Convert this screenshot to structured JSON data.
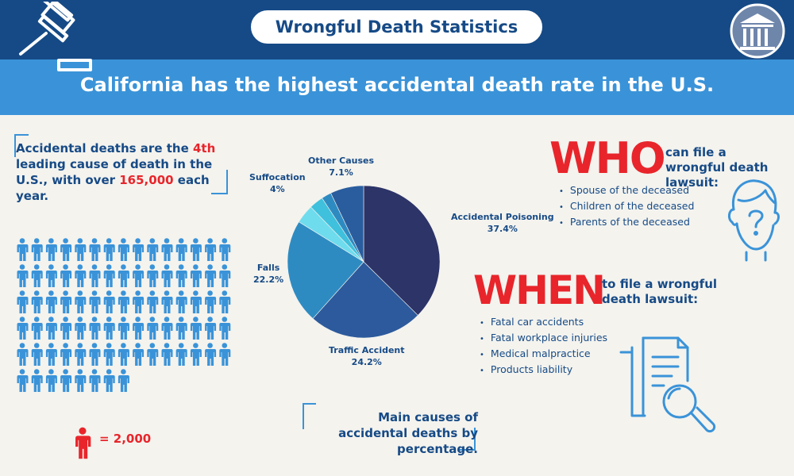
{
  "header": {
    "title": "Wrongful Death Statistics",
    "headline": "California has the highest accidental death rate in the U.S.",
    "gavel_icon": "gavel-icon",
    "logo_icon": "courthouse-logo-icon"
  },
  "fact": {
    "part1": "Accidental deaths are the ",
    "rank": "4th",
    "part2": " leading cause of death in the U.S., with over ",
    "count": "165,000",
    "part3": " each year."
  },
  "pictogram": {
    "icon": "person-icon",
    "full_rows": 5,
    "per_row": 15,
    "last_row": 8,
    "color": "#3a93d8",
    "legend_value": "= 2,000",
    "legend_color": "#e8252b"
  },
  "chart_data": {
    "type": "pie",
    "title": "",
    "slices": [
      {
        "name": "Accidental Poisoning",
        "value": 37.4,
        "label": "37.4%",
        "color": "#2c3468"
      },
      {
        "name": "Traffic Accident",
        "value": 24.2,
        "label": "24.2%",
        "color": "#2c5a9c"
      },
      {
        "name": "Falls",
        "value": 22.2,
        "label": "22.2%",
        "color": "#2e8bc2"
      },
      {
        "name": "Suffocation",
        "value": 4,
        "label": "4%",
        "color": "#6fdcee"
      },
      {
        "name": "Other Causes",
        "value": 7.1,
        "label": "7.1%",
        "color": "#2a5d9e"
      }
    ],
    "unlabeled_slices": [
      {
        "value": 3.0,
        "color": "#3fc0dc"
      },
      {
        "value": 2.1,
        "color": "#2e8bc2"
      }
    ],
    "caption": "Main causes of accidental deaths by percentage."
  },
  "who": {
    "big": "WHO",
    "heading": "can file a wrongful death lawsuit:",
    "items": [
      "Spouse of the deceased",
      "Children of the deceased",
      "Parents of the deceased"
    ],
    "icon": "question-head-icon"
  },
  "when": {
    "big": "WHEN",
    "heading": "to file a wrongful death lawsuit:",
    "items": [
      "Fatal car accidents",
      "Fatal workplace injuries",
      "Medical malpractice",
      "Products liability"
    ],
    "icon": "document-search-icon"
  },
  "colors": {
    "navy": "#164a86",
    "blue": "#3a93d8",
    "red": "#e8252b",
    "bg": "#f4f3ee"
  }
}
